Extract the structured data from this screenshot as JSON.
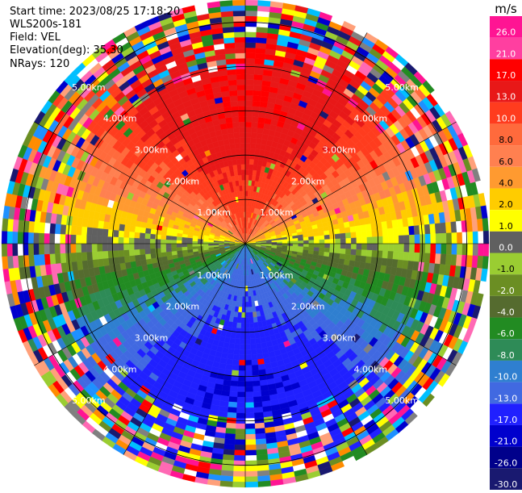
{
  "header": {
    "start_time": "Start time: 2023/08/25 17:18:20",
    "instrument": "WLS200s-181",
    "field": "Field: VEL",
    "elevation": "Elevation(deg): 35.30",
    "nrays": "NRays: 120"
  },
  "chart_data": {
    "type": "heatmap",
    "projection": "polar-ppi",
    "field": "VEL",
    "units": "m/s",
    "nrays": 120,
    "elevation_deg": 35.3,
    "max_range_km": 5.5,
    "range_rings_km": [
      1.0,
      2.0,
      3.0,
      4.0,
      5.0
    ],
    "ring_labels": [
      "1.00km",
      "2.00km",
      "3.00km",
      "4.00km",
      "5.00km"
    ],
    "spoke_azimuths_deg": [
      0,
      30,
      60,
      90,
      120,
      150,
      180,
      210,
      240,
      270,
      300,
      330
    ],
    "flow_summary": {
      "positive_toward_azimuth_deg": 0,
      "negative_toward_azimuth_deg": 180,
      "peak_speed_m_s": 17,
      "valid_range_km": 4.0
    },
    "colorbar": {
      "label": "m/s",
      "ticks": [
        "26.0",
        "21.0",
        "17.0",
        "13.0",
        "10.0",
        "8.0",
        "6.0",
        "4.0",
        "2.0",
        "1.0",
        "0.0",
        "-1.0",
        "-2.0",
        "-4.0",
        "-6.0",
        "-8.0",
        "-10.0",
        "-13.0",
        "-17.0",
        "-21.0",
        "-26.0",
        "-30.0"
      ],
      "colors": [
        "#ff1493",
        "#ff3fa0",
        "#ff0000",
        "#e81818",
        "#ff3c1e",
        "#ff6a3c",
        "#ff8050",
        "#ff9a30",
        "#ffcc00",
        "#ffff00",
        "#606060",
        "#9acd32",
        "#6b8e23",
        "#556b2f",
        "#228b22",
        "#2e8b57",
        "#2f7fd0",
        "#4169e1",
        "#2020ff",
        "#0000cd",
        "#00008b",
        "#191970"
      ]
    },
    "noise_palette": [
      "#ff1493",
      "#ff0000",
      "#ff8c00",
      "#ffff00",
      "#9acd32",
      "#228b22",
      "#1e90ff",
      "#0000cd",
      "#191970",
      "#808080",
      "#ff69b4",
      "#ffa07a",
      "#00bfff",
      "#6b8e23",
      "#ffffff"
    ]
  },
  "colors": {
    "ring": "#000000",
    "spoke": "#000000",
    "background": "#ffffff"
  }
}
